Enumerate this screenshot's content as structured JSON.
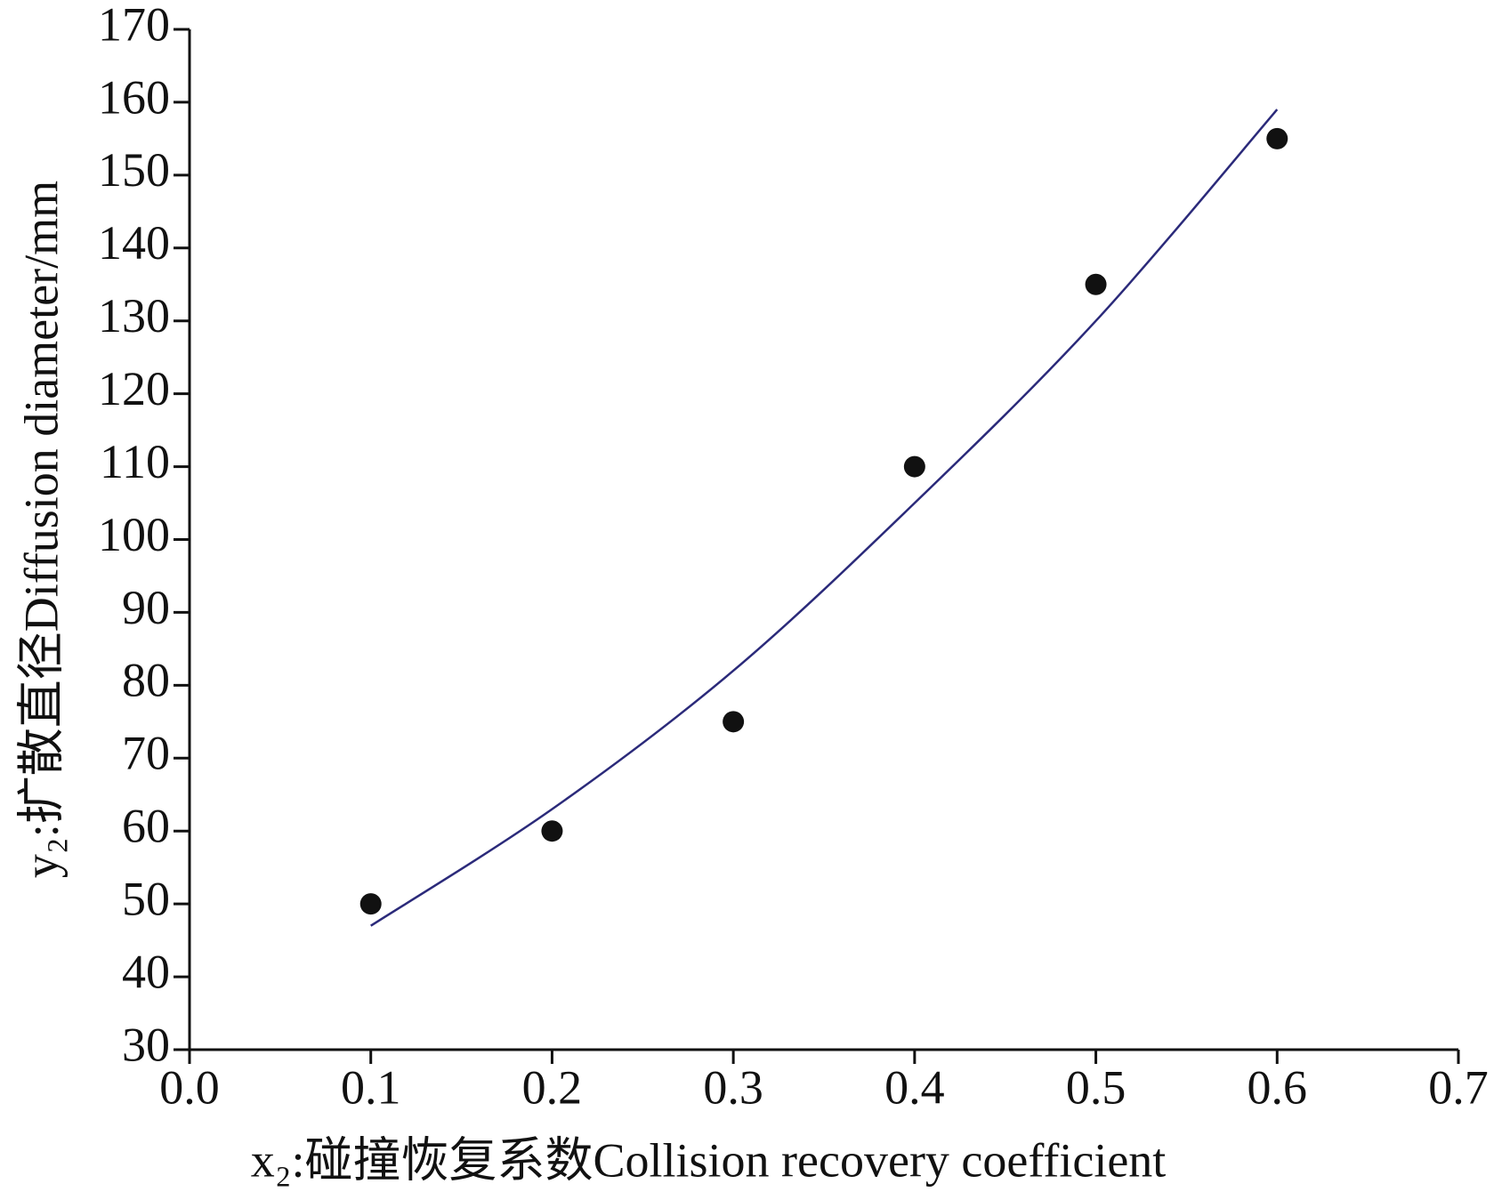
{
  "chart_data": {
    "type": "scatter",
    "x_label": "x₂:碰撞恢复系数Collision recovery coefficient",
    "y_label": "y₂:扩散直径Diffusion diameter/mm",
    "xlim": [
      0,
      0.7
    ],
    "ylim": [
      30,
      170
    ],
    "xticks": [
      {
        "value": 0,
        "label": "0.0"
      },
      0.1,
      0.2,
      0.3,
      0.4,
      0.5,
      0.6,
      0.7
    ],
    "yticks": [
      30,
      40,
      50,
      60,
      70,
      80,
      90,
      100,
      110,
      120,
      130,
      140,
      150,
      160,
      170
    ],
    "series": [
      {
        "type": "scatter",
        "color": "#111111",
        "x": [
          0.1,
          0.2,
          0.3,
          0.4,
          0.5,
          0.6
        ],
        "values": [
          50,
          60,
          75,
          110,
          135,
          155
        ]
      },
      {
        "type": "line",
        "color": "#2b2a7a",
        "x": [
          0.1,
          0.2,
          0.3,
          0.4,
          0.5,
          0.6
        ],
        "values": [
          47,
          63,
          82,
          105,
          130,
          159
        ]
      }
    ]
  }
}
